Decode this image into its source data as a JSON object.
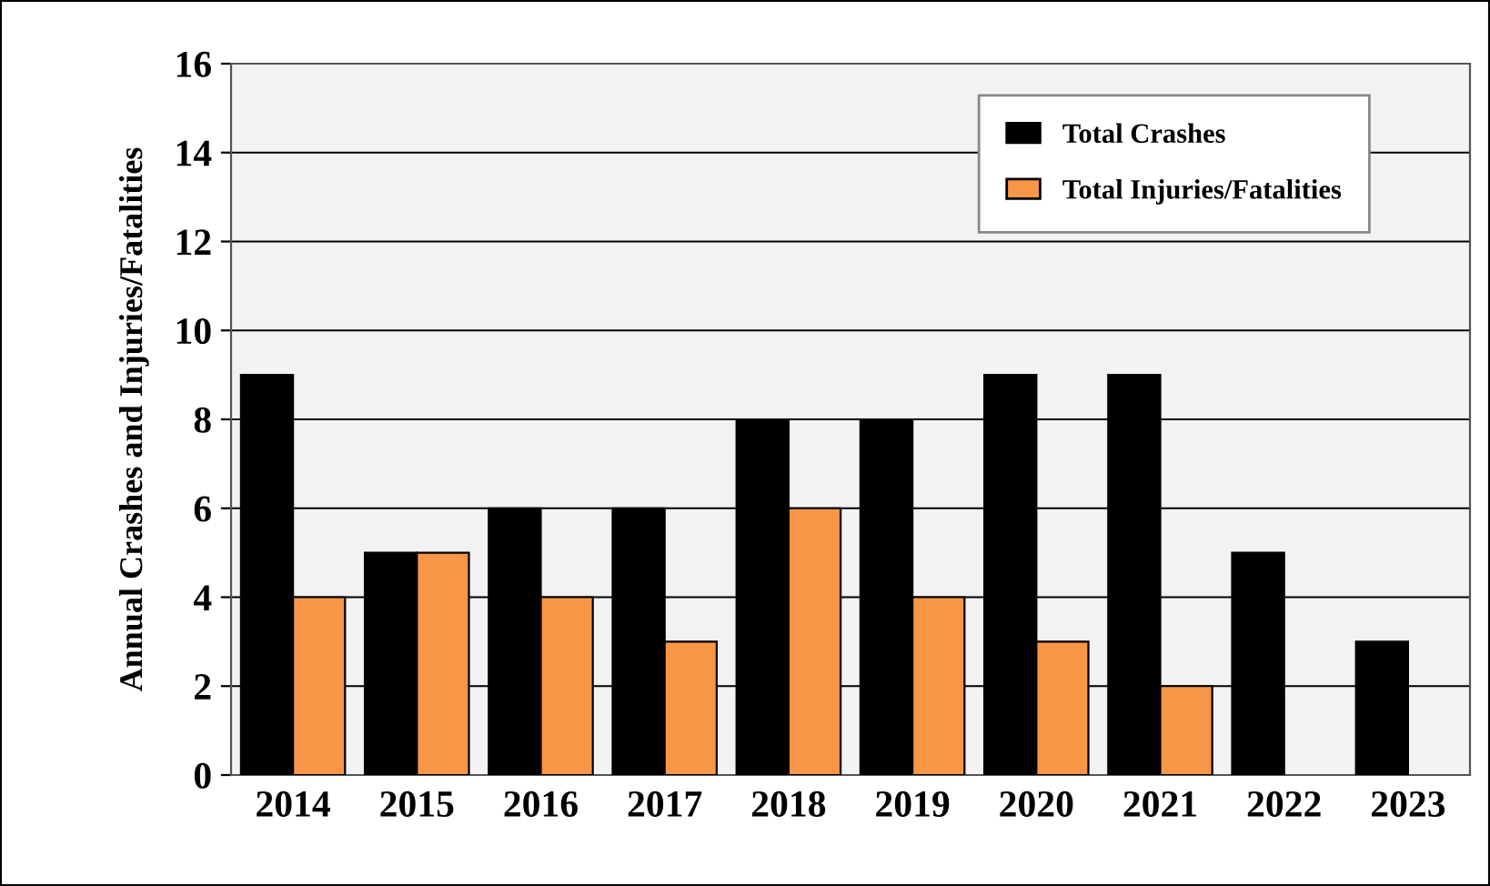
{
  "chart_data": {
    "type": "bar",
    "ylabel": "Annual Crashes and Injuries/Fatalities",
    "categories": [
      "2014",
      "2015",
      "2016",
      "2017",
      "2018",
      "2019",
      "2020",
      "2021",
      "2022",
      "2023"
    ],
    "series": [
      {
        "name": "Total Crashes",
        "color": "#000000",
        "values": [
          9,
          5,
          6,
          6,
          8,
          8,
          9,
          9,
          5,
          3
        ]
      },
      {
        "name": "Total Injuries/Fatalities",
        "color": "#f79646",
        "values": [
          4,
          5,
          4,
          3,
          6,
          4,
          3,
          2,
          null,
          null
        ]
      }
    ],
    "ylim": [
      0,
      16
    ],
    "yticks": [
      0,
      2,
      4,
      6,
      8,
      10,
      12,
      14,
      16
    ],
    "grid": "y",
    "legend": "top right"
  }
}
